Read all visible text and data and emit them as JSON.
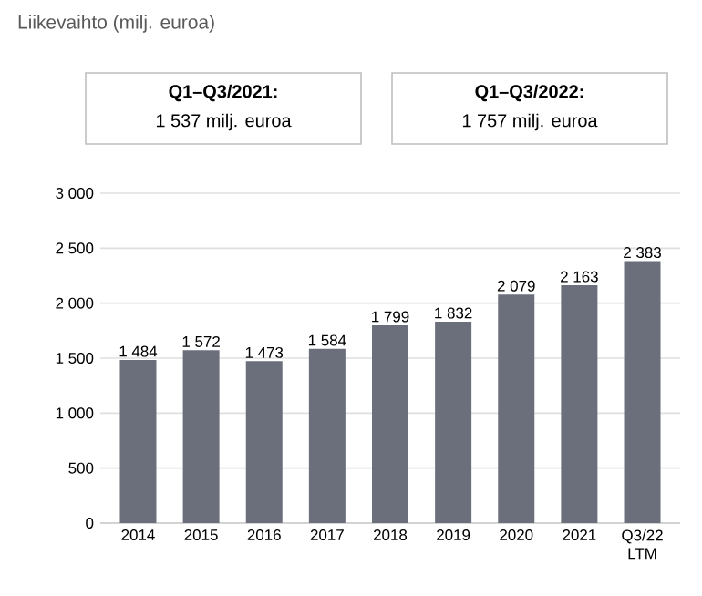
{
  "chart_data": {
    "type": "bar",
    "title": "Liikevaihto (milj. euroa)",
    "annotations": [
      "Q1–Q3/2021:",
      "1 537 milj. euroa",
      "Q1–Q3/2022:",
      "1 757 milj. euroa"
    ],
    "categories": [
      "2014",
      "2015",
      "2016",
      "2017",
      "2018",
      "2019",
      "2020",
      "2021",
      "Q3/22 LTM"
    ],
    "values": [
      1484,
      1572,
      1473,
      1584,
      1799,
      1832,
      2079,
      2163,
      2383
    ],
    "value_labels": [
      "1 484",
      "1 572",
      "1 473",
      "1 584",
      "1 799",
      "1 832",
      "2 079",
      "2 163",
      "2 383"
    ],
    "color": "#6b6f7c",
    "ylim": [
      0,
      3000
    ],
    "yticks": [
      0,
      {
        "value": 500,
        "label": "500"
      },
      {
        "value": 1000,
        "label": "1 000"
      },
      {
        "value": 1500,
        "label": "1 500"
      },
      {
        "value": 2000,
        "label": "2 000"
      },
      {
        "value": 2500,
        "label": "2 500"
      },
      {
        "value": 3000,
        "label": "3 000"
      }
    ],
    "grid": "y"
  }
}
